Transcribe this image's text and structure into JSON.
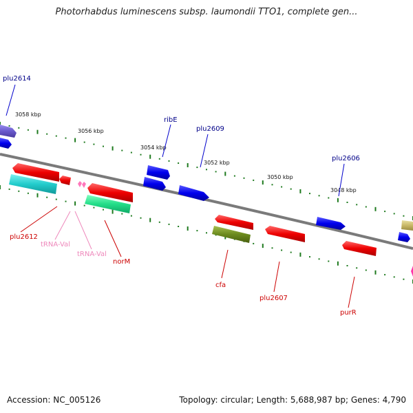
{
  "title": "Photorhabdus luminescens subsp. laumondii TTO1, complete gen...",
  "footer": {
    "accession": "Accession: NC_005126",
    "summary": "Topology: circular; Length: 5,688,987 bp; Genes: 4,790"
  },
  "colors": {
    "backbone": "#7a7a7a",
    "tick": "#1e7a1e",
    "forward_gene": "#0000ee",
    "reverse_gene": "#ee0000",
    "label_blue": "#000088",
    "label_red": "#cc0000",
    "label_pink": "#ee88bb"
  },
  "scale_labels": [
    "3058 kbp",
    "3056 kbp",
    "3054 kbp",
    "3052 kbp",
    "3050 kbp",
    "3048 kbp"
  ],
  "gene_labels": {
    "plu2614": "plu2614",
    "ribE": "ribE",
    "plu2609": "plu2609",
    "plu2606": "plu2606",
    "plu2612": "plu2612",
    "trna_val_1": "tRNA-Val",
    "trna_val_2": "tRNA-Val",
    "norM": "norM",
    "cfa": "cfa",
    "plu2607": "plu2607",
    "purR": "purR"
  }
}
